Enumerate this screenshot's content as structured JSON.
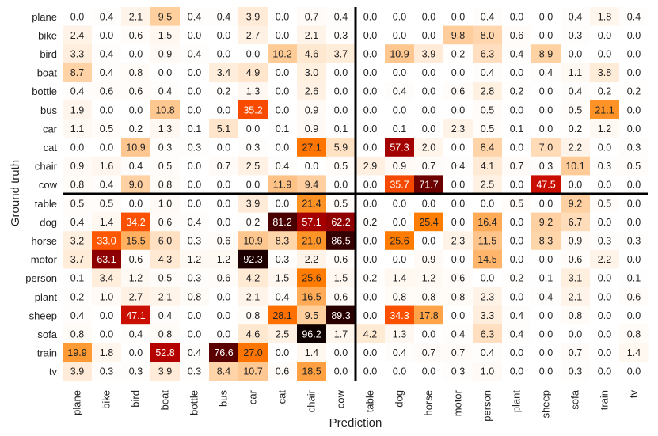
{
  "chart_data": {
    "type": "heatmap",
    "xlabel": "Prediction",
    "ylabel": "Ground truth",
    "x_categories": [
      "plane",
      "bike",
      "bird",
      "boat",
      "bottle",
      "bus",
      "car",
      "cat",
      "chair",
      "cow",
      "table",
      "dog",
      "horse",
      "motor",
      "person",
      "plant",
      "sheep",
      "sofa",
      "train",
      "tv"
    ],
    "y_categories": [
      "plane",
      "bike",
      "bird",
      "boat",
      "bottle",
      "bus",
      "car",
      "cat",
      "chair",
      "cow",
      "table",
      "dog",
      "horse",
      "motor",
      "person",
      "plant",
      "sheep",
      "sofa",
      "train",
      "tv"
    ],
    "values": [
      [
        0.0,
        0.4,
        2.1,
        9.5,
        0.4,
        0.4,
        3.9,
        0.0,
        0.7,
        0.4,
        0.0,
        0.0,
        0.0,
        0.0,
        0.4,
        0.0,
        0.0,
        0.4,
        1.8,
        0.4
      ],
      [
        2.4,
        0.0,
        0.6,
        1.5,
        0.0,
        0.0,
        2.7,
        0.0,
        2.1,
        0.3,
        0.0,
        0.0,
        0.0,
        9.8,
        8.0,
        0.6,
        0.0,
        0.3,
        0.0,
        0.0
      ],
      [
        3.3,
        0.4,
        0.0,
        0.9,
        0.4,
        0.0,
        0.0,
        10.2,
        4.6,
        3.7,
        0.0,
        10.9,
        3.9,
        0.2,
        6.3,
        0.4,
        8.9,
        0.0,
        0.0,
        0.0
      ],
      [
        8.7,
        0.4,
        0.8,
        0.0,
        0.0,
        3.4,
        4.9,
        0.0,
        3.0,
        0.0,
        0.0,
        0.0,
        0.0,
        0.0,
        0.4,
        0.0,
        0.4,
        1.1,
        3.8,
        0.0
      ],
      [
        0.4,
        0.6,
        0.6,
        0.4,
        0.0,
        0.2,
        1.3,
        0.0,
        2.6,
        0.0,
        0.0,
        0.4,
        0.0,
        0.6,
        2.8,
        0.2,
        0.0,
        0.4,
        0.2,
        0.2
      ],
      [
        1.9,
        0.0,
        0.0,
        10.8,
        0.0,
        0.0,
        35.2,
        0.0,
        0.9,
        0.0,
        0.0,
        0.0,
        0.0,
        0.0,
        0.5,
        0.0,
        0.0,
        0.5,
        21.1,
        0.0
      ],
      [
        1.1,
        0.5,
        0.2,
        1.3,
        0.1,
        5.1,
        0.0,
        0.1,
        0.9,
        0.1,
        0.0,
        0.1,
        0.0,
        2.3,
        0.5,
        0.1,
        0.0,
        0.2,
        1.2,
        0.0
      ],
      [
        0.0,
        0.0,
        10.9,
        0.3,
        0.3,
        0.0,
        0.3,
        0.0,
        27.1,
        5.9,
        0.0,
        57.3,
        2.0,
        0.0,
        8.4,
        0.0,
        7.0,
        2.2,
        0.0,
        0.3
      ],
      [
        0.9,
        1.6,
        0.4,
        0.5,
        0.0,
        0.7,
        2.5,
        0.4,
        0.0,
        0.5,
        2.9,
        0.9,
        0.7,
        0.4,
        4.1,
        0.7,
        0.3,
        10.1,
        0.3,
        0.5
      ],
      [
        0.8,
        0.4,
        9.0,
        0.8,
        0.0,
        0.0,
        0.0,
        11.9,
        9.4,
        0.0,
        0.0,
        35.7,
        71.7,
        0.0,
        2.5,
        0.0,
        47.5,
        0.0,
        0.0,
        0.0
      ],
      [
        0.5,
        0.5,
        0.0,
        1.0,
        0.0,
        0.0,
        3.9,
        0.0,
        21.4,
        0.5,
        0.0,
        0.0,
        0.0,
        0.0,
        0.0,
        0.5,
        0.0,
        9.2,
        0.5,
        0.0
      ],
      [
        0.4,
        1.4,
        34.2,
        0.6,
        0.4,
        0.0,
        0.2,
        81.2,
        57.1,
        62.2,
        0.2,
        0.0,
        25.4,
        0.0,
        16.4,
        0.0,
        9.2,
        6.7,
        0.0,
        0.0
      ],
      [
        3.2,
        33.0,
        15.5,
        6.0,
        0.3,
        0.6,
        10.9,
        8.3,
        21.0,
        86.5,
        0.0,
        25.6,
        0.0,
        2.3,
        11.5,
        0.0,
        8.3,
        0.9,
        0.3,
        0.3
      ],
      [
        3.7,
        63.1,
        0.6,
        4.3,
        1.2,
        1.2,
        92.3,
        0.3,
        2.2,
        0.6,
        0.0,
        0.0,
        0.9,
        0.0,
        14.5,
        0.0,
        0.0,
        0.6,
        2.2,
        0.0
      ],
      [
        0.1,
        3.4,
        1.2,
        0.5,
        0.3,
        0.6,
        4.2,
        1.5,
        25.6,
        1.5,
        0.2,
        1.4,
        1.2,
        0.6,
        0.0,
        0.2,
        0.1,
        3.1,
        0.0,
        0.1
      ],
      [
        0.2,
        1.0,
        2.7,
        2.1,
        0.8,
        0.0,
        2.1,
        0.4,
        16.5,
        0.6,
        0.0,
        0.8,
        0.8,
        0.8,
        2.3,
        0.0,
        0.4,
        2.1,
        0.0,
        0.6
      ],
      [
        0.4,
        0.0,
        47.1,
        0.4,
        0.0,
        0.0,
        0.8,
        28.1,
        9.5,
        89.3,
        0.0,
        34.3,
        17.8,
        0.0,
        3.3,
        0.4,
        0.0,
        0.8,
        0.0,
        0.0
      ],
      [
        0.8,
        0.0,
        0.4,
        0.8,
        0.0,
        0.0,
        4.6,
        2.5,
        96.2,
        1.7,
        4.2,
        1.3,
        0.0,
        0.4,
        6.3,
        0.4,
        0.0,
        0.0,
        0.0,
        0.8
      ],
      [
        19.9,
        1.8,
        0.0,
        52.8,
        0.4,
        76.6,
        27.0,
        0.0,
        1.4,
        0.0,
        0.0,
        0.4,
        0.7,
        0.7,
        0.4,
        0.0,
        0.0,
        0.7,
        0.0,
        1.4
      ],
      [
        3.9,
        0.3,
        0.3,
        3.9,
        0.3,
        8.4,
        10.7,
        0.6,
        18.5,
        0.0,
        0.0,
        0.0,
        0.0,
        0.3,
        1.0,
        0.0,
        0.0,
        0.3,
        0.0,
        0.0
      ]
    ],
    "value_range": [
      0,
      100
    ],
    "colormap": "gist_heat_r",
    "grid": false,
    "divider_lines": {
      "vertical_after_column": "cow",
      "horizontal_after_row": "cow"
    }
  }
}
